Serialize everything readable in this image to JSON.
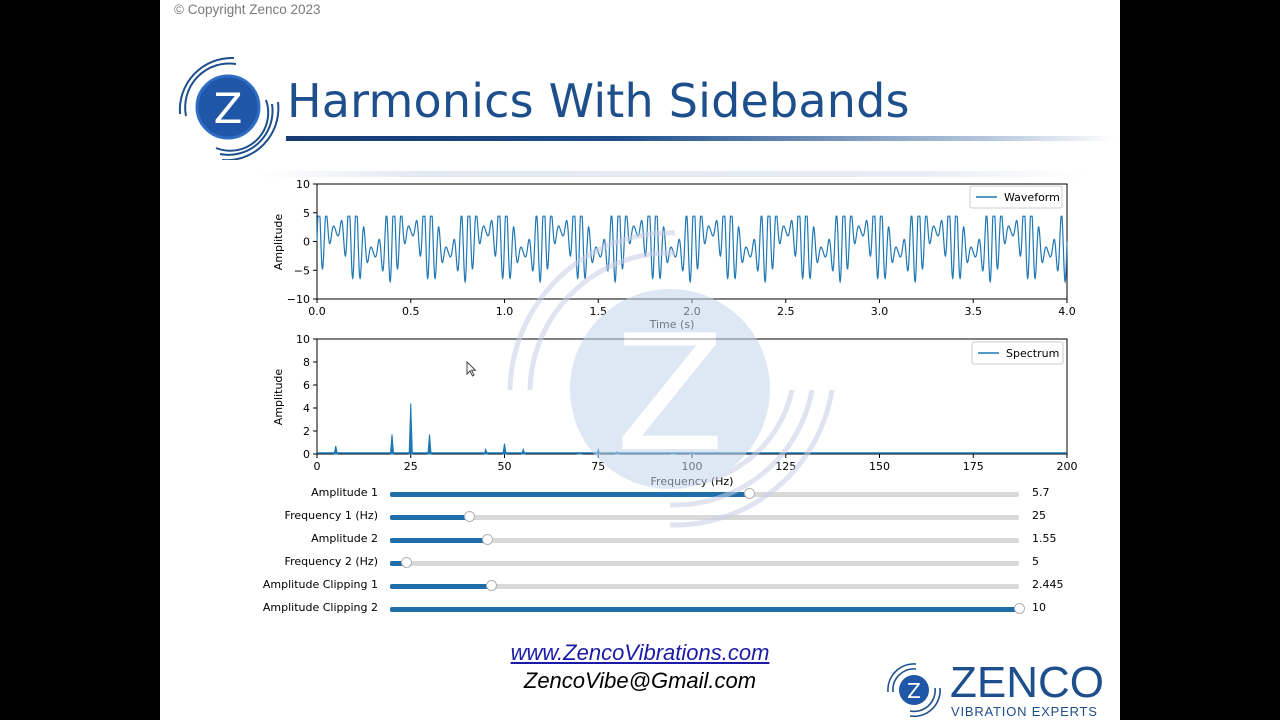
{
  "copyright": "© Copyright Zenco 2023",
  "logo": {
    "letter": "Z"
  },
  "title": "Harmonics With Sidebands",
  "colors": {
    "brand": "#1d4f8c",
    "series": "#1f77b4",
    "slider_fill": "#1f6eaa",
    "link": "#1a1aa8"
  },
  "chart_data": [
    {
      "type": "line",
      "legend": [
        "Waveform"
      ],
      "legend_position": "top-right",
      "xlabel": "Time (s)",
      "ylabel": "Amplitude",
      "xlim": [
        0,
        4
      ],
      "ylim": [
        -10,
        10
      ],
      "xticks": [
        "0.0",
        "0.5",
        "1.0",
        "1.5",
        "2.0",
        "2.5",
        "3.0",
        "3.5",
        "4.0"
      ],
      "yticks": [
        "10",
        "5",
        "0",
        "−5",
        "−10"
      ],
      "series": [
        {
          "name": "Waveform",
          "frequency_hz": 25,
          "modulation_hz": 5,
          "peak_amplitude": 4.4,
          "trough_amplitude": -9.2
        }
      ]
    },
    {
      "type": "line",
      "legend": [
        "Spectrum"
      ],
      "legend_position": "top-right",
      "xlabel": "Frequency (Hz)",
      "ylabel": "Amplitude",
      "xlim": [
        0,
        200
      ],
      "ylim": [
        0,
        10
      ],
      "xticks": [
        "0",
        "25",
        "50",
        "75",
        "100",
        "125",
        "150",
        "175",
        "200"
      ],
      "yticks": [
        "10",
        "8",
        "6",
        "4",
        "2",
        "0"
      ],
      "series": [
        {
          "name": "Spectrum",
          "x": [
            5,
            20,
            25,
            30,
            45,
            50,
            55,
            70,
            75,
            80,
            95,
            100
          ],
          "y": [
            0.7,
            1.7,
            4.4,
            1.7,
            0.4,
            0.9,
            0.4,
            0.1,
            0.4,
            0.2,
            0.1,
            0.15
          ]
        }
      ]
    }
  ],
  "sliders": [
    {
      "label": "Amplitude 1",
      "value": "5.7",
      "fraction": 0.57
    },
    {
      "label": "Frequency 1 (Hz)",
      "value": "25",
      "fraction": 0.125
    },
    {
      "label": "Amplitude 2",
      "value": "1.55",
      "fraction": 0.155
    },
    {
      "label": "Frequency 2 (Hz)",
      "value": "5",
      "fraction": 0.025
    },
    {
      "label": "Amplitude Clipping 1",
      "value": "2.445",
      "fraction": 0.1613
    },
    {
      "label": "Amplitude Clipping 2",
      "value": "10",
      "fraction": 1.0
    }
  ],
  "footer": {
    "website": "www.ZencoVibrations.com",
    "email": "ZencoVibe@Gmail.com",
    "brand_name": "ZENCO",
    "brand_tagline": "VIBRATION EXPERTS"
  }
}
